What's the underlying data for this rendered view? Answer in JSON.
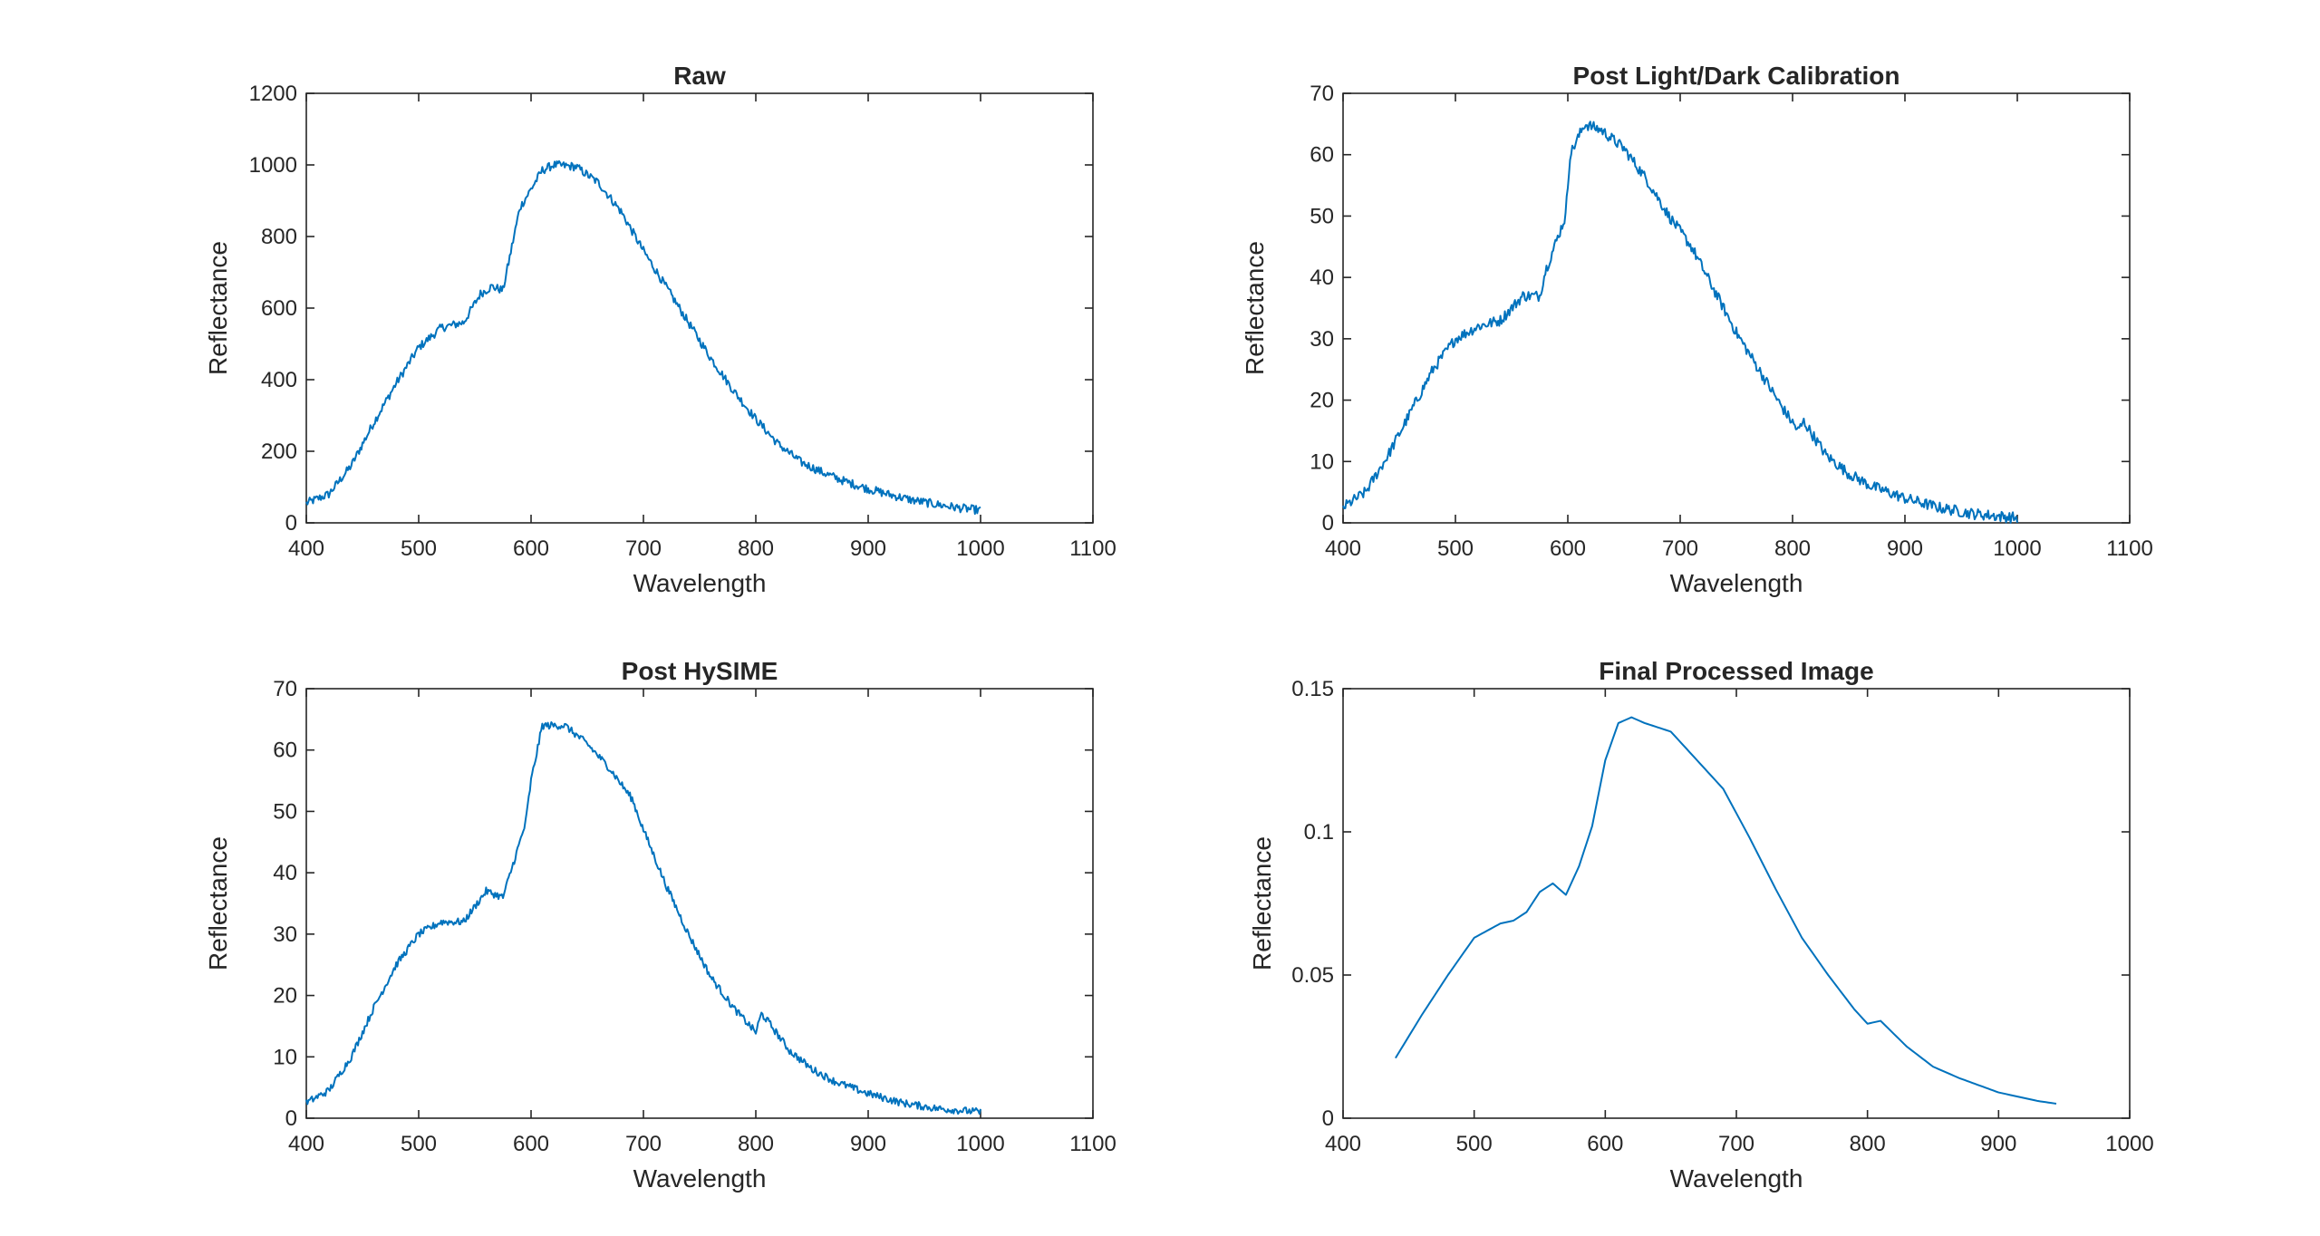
{
  "figure": {
    "background": "#ffffff",
    "line_color": "#0072BD",
    "axis_color": "#262626"
  },
  "chart_data": [
    {
      "type": "line",
      "title": "Raw",
      "xlabel": "Wavelength",
      "ylabel": "Reflectance",
      "xlim": [
        400,
        1100
      ],
      "ylim": [
        0,
        1200
      ],
      "xticks": [
        400,
        500,
        600,
        700,
        800,
        900,
        1000,
        1100
      ],
      "yticks": [
        0,
        200,
        400,
        600,
        800,
        1000,
        1200
      ],
      "xtick_labels": [
        "400",
        "500",
        "600",
        "700",
        "800",
        "900",
        "1000",
        "1100"
      ],
      "ytick_labels": [
        "0",
        "200",
        "400",
        "600",
        "800",
        "1000",
        "1200"
      ],
      "noise": 12,
      "series": [
        {
          "name": "Raw",
          "x": [
            400,
            420,
            440,
            460,
            480,
            500,
            520,
            540,
            555,
            565,
            575,
            590,
            610,
            620,
            640,
            660,
            680,
            700,
            720,
            740,
            760,
            780,
            800,
            820,
            840,
            860,
            880,
            900,
            920,
            940,
            960,
            980,
            1000
          ],
          "y": [
            55,
            80,
            160,
            280,
            390,
            490,
            545,
            560,
            640,
            660,
            650,
            880,
            985,
            1000,
            995,
            950,
            870,
            760,
            660,
            560,
            460,
            370,
            290,
            220,
            170,
            140,
            115,
            95,
            78,
            63,
            52,
            42,
            35
          ]
        }
      ]
    },
    {
      "type": "line",
      "title": "Post Light/Dark Calibration",
      "xlabel": "Wavelength",
      "ylabel": "Reflectance",
      "xlim": [
        400,
        1100
      ],
      "ylim": [
        0,
        70
      ],
      "xticks": [
        400,
        500,
        600,
        700,
        800,
        900,
        1000,
        1100
      ],
      "yticks": [
        0,
        10,
        20,
        30,
        40,
        50,
        60,
        70
      ],
      "xtick_labels": [
        "400",
        "500",
        "600",
        "700",
        "800",
        "900",
        "1000",
        "1100"
      ],
      "ytick_labels": [
        "0",
        "10",
        "20",
        "30",
        "40",
        "50",
        "60",
        "70"
      ],
      "noise": 0.9,
      "series": [
        {
          "name": "Post Light/Dark Calibration",
          "x": [
            400,
            420,
            440,
            460,
            480,
            500,
            520,
            540,
            560,
            575,
            580,
            590,
            598,
            602,
            615,
            630,
            650,
            670,
            690,
            710,
            730,
            750,
            770,
            790,
            805,
            810,
            830,
            850,
            870,
            900,
            930,
            960,
            1000
          ],
          "y": [
            2.5,
            5,
            11,
            18,
            25,
            30,
            32,
            33,
            37,
            37,
            41,
            46,
            50,
            60,
            65,
            64,
            61,
            56,
            50,
            45,
            38,
            31,
            25,
            19,
            15,
            16.5,
            11,
            8,
            6,
            4,
            2.5,
            1.5,
            0.8
          ]
        }
      ]
    },
    {
      "type": "line",
      "title": "Post HySIME",
      "xlabel": "Wavelength",
      "ylabel": "Reflectance",
      "xlim": [
        400,
        1100
      ],
      "ylim": [
        0,
        70
      ],
      "xticks": [
        400,
        500,
        600,
        700,
        800,
        900,
        1000,
        1100
      ],
      "yticks": [
        0,
        10,
        20,
        30,
        40,
        50,
        60,
        70
      ],
      "xtick_labels": [
        "400",
        "500",
        "600",
        "700",
        "800",
        "900",
        "1000",
        "1100"
      ],
      "ytick_labels": [
        "0",
        "10",
        "20",
        "30",
        "40",
        "50",
        "60",
        "70"
      ],
      "noise": 0.6,
      "series": [
        {
          "name": "Post HySIME",
          "x": [
            400,
            420,
            440,
            460,
            480,
            500,
            520,
            540,
            560,
            575,
            585,
            595,
            600,
            610,
            630,
            650,
            670,
            690,
            700,
            720,
            740,
            760,
            780,
            800,
            805,
            810,
            830,
            850,
            870,
            900,
            930,
            960,
            1000
          ],
          "y": [
            2.5,
            4.5,
            10,
            18,
            25,
            30,
            32,
            32,
            37,
            36,
            42,
            48,
            55,
            64,
            64,
            61,
            57,
            52,
            47,
            38,
            30,
            23,
            18,
            14,
            17,
            16,
            11,
            8,
            6,
            4,
            2.5,
            1.6,
            1
          ]
        }
      ]
    },
    {
      "type": "line",
      "title": "Final Processed Image",
      "xlabel": "Wavelength",
      "ylabel": "Reflectance",
      "xlim": [
        400,
        1000
      ],
      "ylim": [
        0,
        0.15
      ],
      "xticks": [
        400,
        500,
        600,
        700,
        800,
        900,
        1000
      ],
      "yticks": [
        0,
        0.05,
        0.1,
        0.15
      ],
      "xtick_labels": [
        "400",
        "500",
        "600",
        "700",
        "800",
        "900",
        "1000"
      ],
      "ytick_labels": [
        "0",
        "0.05",
        "0.1",
        "0.15"
      ],
      "noise": 0,
      "series": [
        {
          "name": "Final Processed Image",
          "x": [
            440,
            460,
            480,
            500,
            520,
            530,
            540,
            550,
            560,
            570,
            580,
            590,
            600,
            610,
            620,
            630,
            650,
            670,
            690,
            710,
            730,
            750,
            770,
            790,
            800,
            810,
            830,
            850,
            870,
            900,
            930,
            945
          ],
          "y": [
            0.021,
            0.036,
            0.05,
            0.063,
            0.068,
            0.069,
            0.072,
            0.079,
            0.082,
            0.078,
            0.088,
            0.102,
            0.125,
            0.138,
            0.14,
            0.138,
            0.135,
            0.125,
            0.115,
            0.098,
            0.08,
            0.063,
            0.05,
            0.038,
            0.033,
            0.034,
            0.025,
            0.018,
            0.014,
            0.009,
            0.006,
            0.005
          ]
        }
      ]
    }
  ]
}
